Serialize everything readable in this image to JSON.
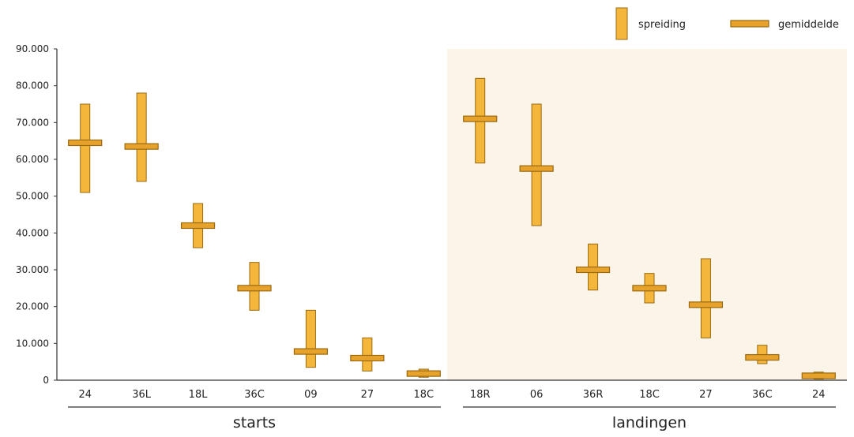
{
  "chart_data": {
    "type": "range-bar",
    "ylim": [
      0,
      90000
    ],
    "yticks": [
      0,
      10000,
      20000,
      30000,
      40000,
      50000,
      60000,
      70000,
      80000,
      90000
    ],
    "ytick_labels": [
      "0",
      "10.000",
      "20.000",
      "30.000",
      "40.000",
      "50.000",
      "60.000",
      "70.000",
      "80.000",
      "90.000"
    ],
    "legend": {
      "position": "top-right",
      "range_label": "spreiding",
      "mean_label": "gemiddelde"
    },
    "groups": [
      {
        "name": "starts",
        "items": [
          {
            "label": "24",
            "min": 51000,
            "max": 75000,
            "mean": 64500
          },
          {
            "label": "36L",
            "min": 54000,
            "max": 78000,
            "mean": 63500
          },
          {
            "label": "18L",
            "min": 36000,
            "max": 48000,
            "mean": 42000
          },
          {
            "label": "36C",
            "min": 19000,
            "max": 32000,
            "mean": 25000
          },
          {
            "label": "09",
            "min": 3500,
            "max": 19000,
            "mean": 7800
          },
          {
            "label": "27",
            "min": 2500,
            "max": 11500,
            "mean": 6000
          },
          {
            "label": "18C",
            "min": 800,
            "max": 3000,
            "mean": 1800
          }
        ]
      },
      {
        "name": "landingen",
        "items": [
          {
            "label": "18R",
            "min": 59000,
            "max": 82000,
            "mean": 71000
          },
          {
            "label": "06",
            "min": 42000,
            "max": 75000,
            "mean": 57500
          },
          {
            "label": "36R",
            "min": 24500,
            "max": 37000,
            "mean": 30000
          },
          {
            "label": "18C",
            "min": 21000,
            "max": 29000,
            "mean": 25000
          },
          {
            "label": "27",
            "min": 11500,
            "max": 33000,
            "mean": 20500
          },
          {
            "label": "36C",
            "min": 4500,
            "max": 9500,
            "mean": 6200
          },
          {
            "label": "24",
            "min": 300,
            "max": 2200,
            "mean": 1200
          }
        ]
      }
    ],
    "colors": {
      "bar_fill": "#f5b73b",
      "bar_stroke": "#9a6a10",
      "mean_fill": "#e7a22c",
      "landing_bg": "#fbf4e8"
    }
  }
}
